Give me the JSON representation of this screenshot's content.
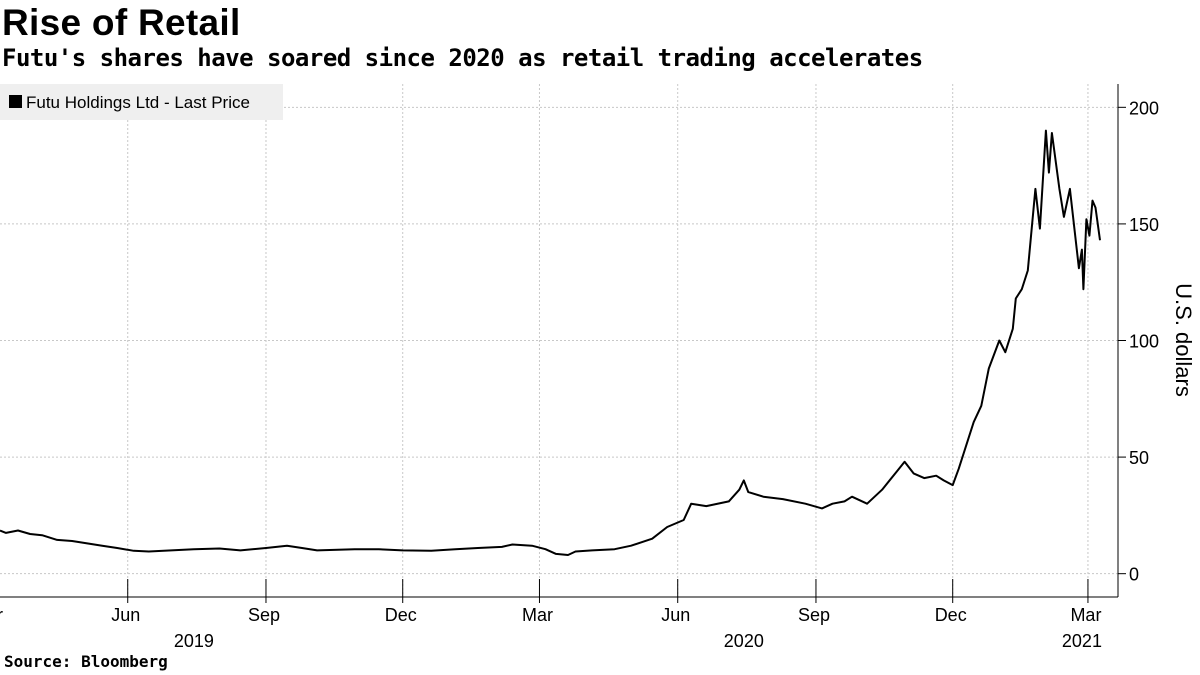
{
  "header": {
    "title": "Rise of Retail",
    "subtitle": "Futu's shares have soared since 2020 as retail trading accelerates"
  },
  "footer": {
    "source": "Source: Bloomberg"
  },
  "colors": {
    "line": "#000000",
    "grid": "#c8c8c8",
    "legend_bg": "#efefef"
  },
  "chart_data": {
    "type": "line",
    "title": "Rise of Retail",
    "subtitle": "Futu's shares have soared since 2020 as retail trading accelerates",
    "ylabel": "U.S. dollars",
    "xlim": [
      "2019-03-08",
      "2021-03-21"
    ],
    "ylim": [
      -10,
      210
    ],
    "y_ticks": [
      0,
      50,
      100,
      150,
      200
    ],
    "x_ticks": [
      {
        "date": "2019-03-01",
        "label": "Mar"
      },
      {
        "date": "2019-06-01",
        "label": "Jun"
      },
      {
        "date": "2019-09-01",
        "label": "Sep"
      },
      {
        "date": "2019-12-01",
        "label": "Dec"
      },
      {
        "date": "2020-03-01",
        "label": "Mar"
      },
      {
        "date": "2020-06-01",
        "label": "Jun"
      },
      {
        "date": "2020-09-01",
        "label": "Sep"
      },
      {
        "date": "2020-12-01",
        "label": "Dec"
      },
      {
        "date": "2021-03-01",
        "label": "Mar"
      }
    ],
    "year_labels": [
      {
        "date": "2019-07-15",
        "label": "2019"
      },
      {
        "date": "2020-07-15",
        "label": "2020"
      },
      {
        "date": "2021-02-25",
        "label": "2021"
      }
    ],
    "grid": true,
    "legend_position": "top-left",
    "series": [
      {
        "name": "Futu Holdings Ltd - Last Price",
        "points": [
          [
            "2019-03-08",
            18.5
          ],
          [
            "2019-03-12",
            17.5
          ],
          [
            "2019-03-20",
            18.5
          ],
          [
            "2019-03-28",
            17.0
          ],
          [
            "2019-04-05",
            16.5
          ],
          [
            "2019-04-15",
            14.5
          ],
          [
            "2019-04-25",
            14.0
          ],
          [
            "2019-05-05",
            13.0
          ],
          [
            "2019-05-15",
            12.0
          ],
          [
            "2019-05-25",
            11.0
          ],
          [
            "2019-06-05",
            9.8
          ],
          [
            "2019-06-15",
            9.5
          ],
          [
            "2019-06-30",
            10.0
          ],
          [
            "2019-07-15",
            10.5
          ],
          [
            "2019-08-01",
            10.8
          ],
          [
            "2019-08-15",
            10.0
          ],
          [
            "2019-09-01",
            11.0
          ],
          [
            "2019-09-15",
            12.0
          ],
          [
            "2019-09-25",
            11.0
          ],
          [
            "2019-10-05",
            10.0
          ],
          [
            "2019-10-30",
            10.5
          ],
          [
            "2019-11-15",
            10.5
          ],
          [
            "2019-12-01",
            10.0
          ],
          [
            "2019-12-20",
            9.8
          ],
          [
            "2020-01-05",
            10.5
          ],
          [
            "2020-01-20",
            11.0
          ],
          [
            "2020-02-05",
            11.5
          ],
          [
            "2020-02-12",
            12.5
          ],
          [
            "2020-02-25",
            12.0
          ],
          [
            "2020-03-05",
            10.5
          ],
          [
            "2020-03-12",
            8.5
          ],
          [
            "2020-03-20",
            8.0
          ],
          [
            "2020-03-25",
            9.5
          ],
          [
            "2020-04-05",
            10.0
          ],
          [
            "2020-04-20",
            10.5
          ],
          [
            "2020-05-01",
            12.0
          ],
          [
            "2020-05-15",
            15.0
          ],
          [
            "2020-05-25",
            20.0
          ],
          [
            "2020-06-05",
            23.0
          ],
          [
            "2020-06-10",
            30.0
          ],
          [
            "2020-06-20",
            29.0
          ],
          [
            "2020-07-05",
            31.0
          ],
          [
            "2020-07-12",
            36.0
          ],
          [
            "2020-07-15",
            40.0
          ],
          [
            "2020-07-18",
            35.0
          ],
          [
            "2020-07-28",
            33.0
          ],
          [
            "2020-08-10",
            32.0
          ],
          [
            "2020-08-25",
            30.0
          ],
          [
            "2020-09-05",
            28.0
          ],
          [
            "2020-09-12",
            30.0
          ],
          [
            "2020-09-20",
            31.0
          ],
          [
            "2020-09-25",
            33.0
          ],
          [
            "2020-10-05",
            30.0
          ],
          [
            "2020-10-15",
            36.0
          ],
          [
            "2020-10-25",
            44.0
          ],
          [
            "2020-10-30",
            48.0
          ],
          [
            "2020-11-05",
            43.0
          ],
          [
            "2020-11-12",
            41.0
          ],
          [
            "2020-11-20",
            42.0
          ],
          [
            "2020-11-25",
            40.0
          ],
          [
            "2020-12-01",
            38.0
          ],
          [
            "2020-12-05",
            45.0
          ],
          [
            "2020-12-10",
            55.0
          ],
          [
            "2020-12-15",
            65.0
          ],
          [
            "2020-12-20",
            72.0
          ],
          [
            "2020-12-25",
            88.0
          ],
          [
            "2021-01-01",
            100.0
          ],
          [
            "2021-01-05",
            95.0
          ],
          [
            "2021-01-10",
            105.0
          ],
          [
            "2021-01-12",
            118.0
          ],
          [
            "2021-01-16",
            122.0
          ],
          [
            "2021-01-20",
            130.0
          ],
          [
            "2021-01-25",
            165.0
          ],
          [
            "2021-01-28",
            148.0
          ],
          [
            "2021-02-01",
            190.0
          ],
          [
            "2021-02-03",
            172.0
          ],
          [
            "2021-02-05",
            189.0
          ],
          [
            "2021-02-10",
            165.0
          ],
          [
            "2021-02-13",
            153.0
          ],
          [
            "2021-02-17",
            165.0
          ],
          [
            "2021-02-20",
            148.0
          ],
          [
            "2021-02-23",
            131.0
          ],
          [
            "2021-02-25",
            139.0
          ],
          [
            "2021-02-26",
            122.0
          ],
          [
            "2021-02-28",
            152.0
          ],
          [
            "2021-03-02",
            145.0
          ],
          [
            "2021-03-04",
            160.0
          ],
          [
            "2021-03-06",
            157.0
          ],
          [
            "2021-03-09",
            143.0
          ]
        ]
      }
    ]
  }
}
